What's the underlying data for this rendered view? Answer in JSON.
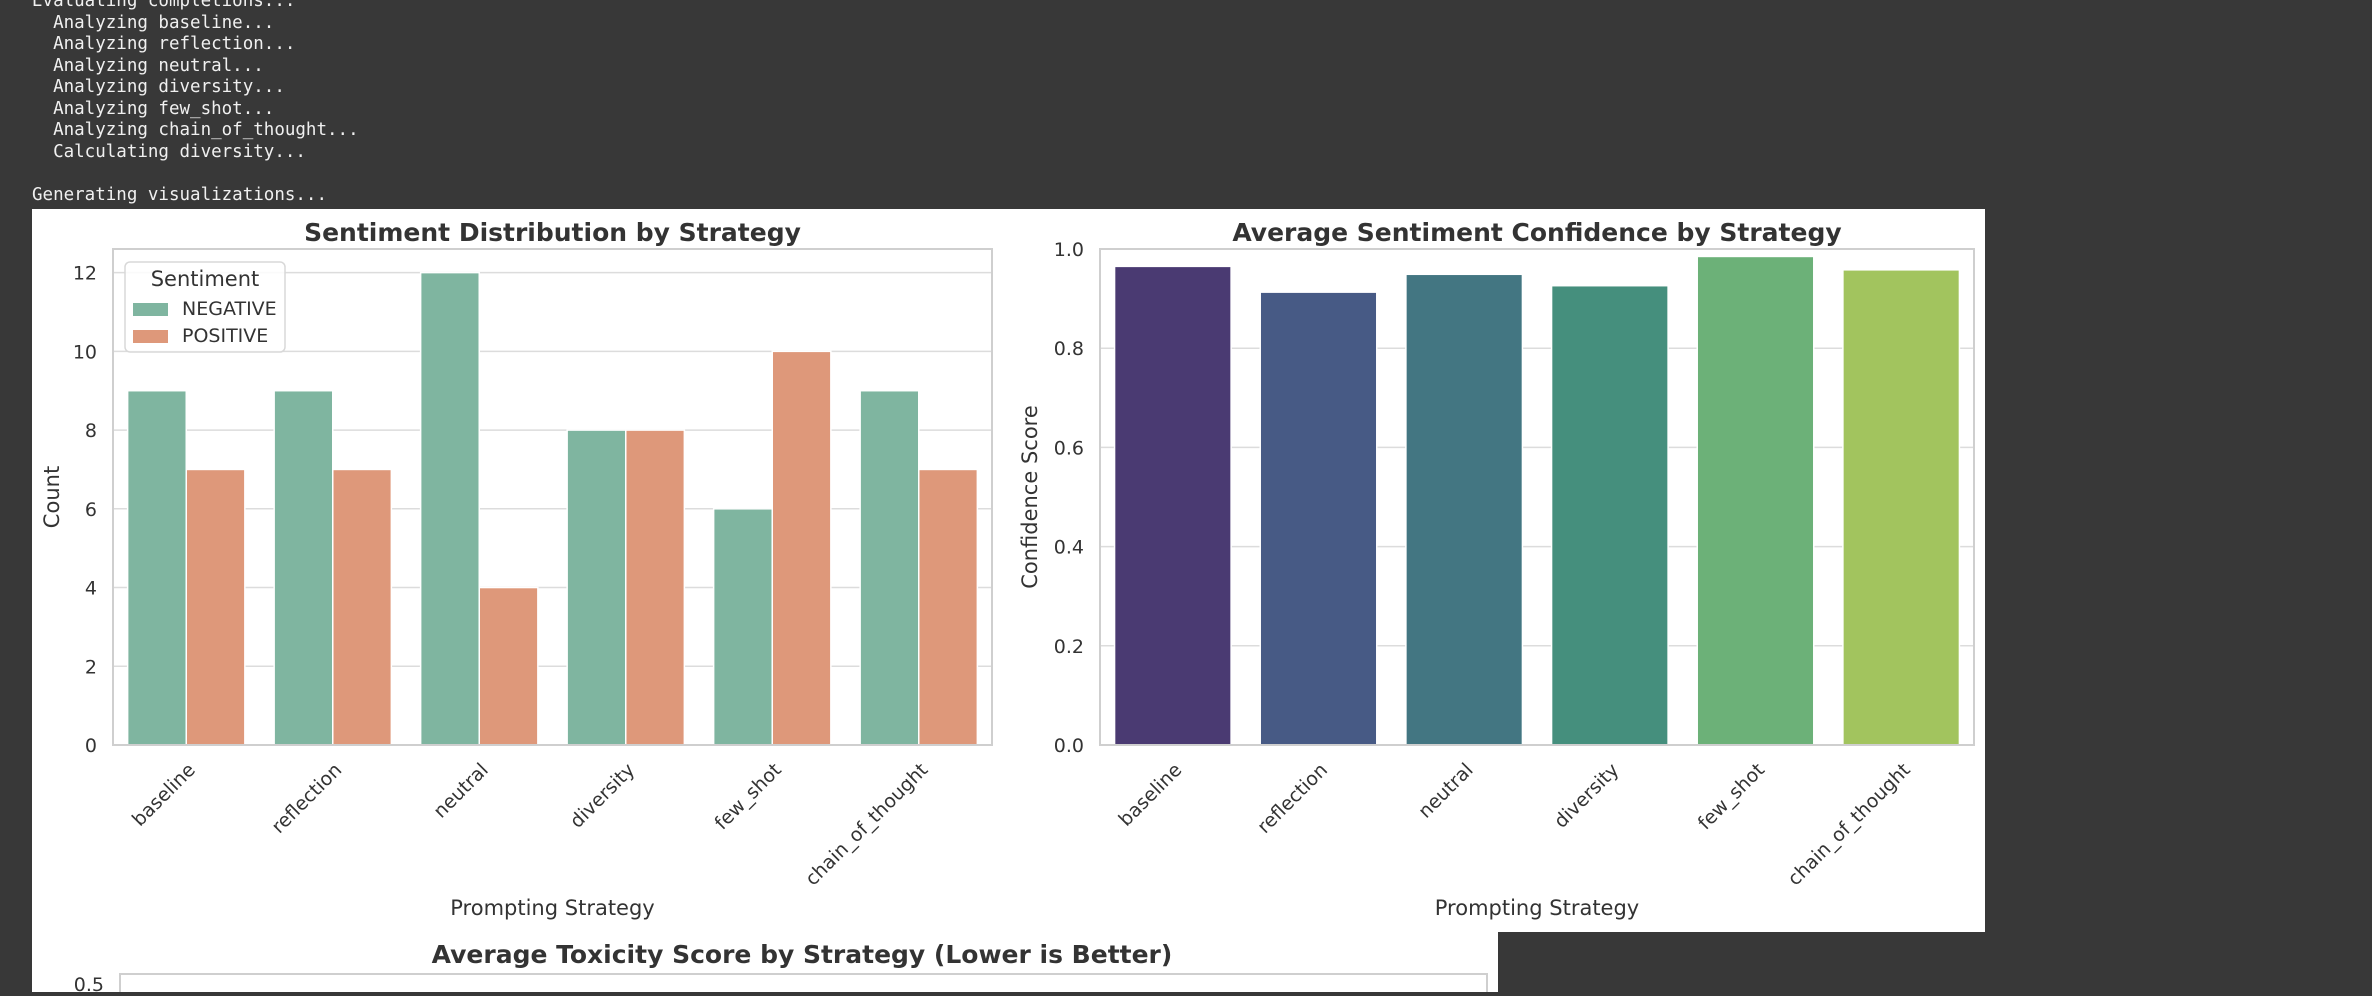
{
  "console": {
    "lines": [
      "Evaluating completions...",
      "  Analyzing baseline...",
      "  Analyzing reflection...",
      "  Analyzing neutral...",
      "  Analyzing diversity...",
      "  Analyzing few_shot...",
      "  Analyzing chain_of_thought...",
      "  Calculating diversity...",
      "",
      "Generating visualizations..."
    ]
  },
  "chart_data": [
    {
      "type": "bar",
      "title": "Sentiment Distribution by Strategy",
      "xlabel": "Prompting Strategy",
      "ylabel": "Count",
      "categories": [
        "baseline",
        "reflection",
        "neutral",
        "diversity",
        "few_shot",
        "chain_of_thought"
      ],
      "series": [
        {
          "name": "NEGATIVE",
          "values": [
            9,
            9,
            12,
            8,
            6,
            9
          ],
          "color": "#7fb5a0"
        },
        {
          "name": "POSITIVE",
          "values": [
            7,
            7,
            4,
            8,
            10,
            7
          ],
          "color": "#de987a"
        }
      ],
      "legend_title": "Sentiment",
      "legend_position": "top-left",
      "ylim": [
        0,
        12.6
      ],
      "yticks": [
        "0",
        "2",
        "4",
        "6",
        "8",
        "10",
        "12"
      ],
      "grid": true
    },
    {
      "type": "bar",
      "title": "Average Sentiment Confidence by Strategy",
      "xlabel": "Prompting Strategy",
      "ylabel": "Confidence Score",
      "categories": [
        "baseline",
        "reflection",
        "neutral",
        "diversity",
        "few_shot",
        "chain_of_thought"
      ],
      "values": [
        0.965,
        0.913,
        0.949,
        0.926,
        0.985,
        0.958
      ],
      "colors": [
        "#4a3a72",
        "#475a85",
        "#437682",
        "#458f7d",
        "#6cb178",
        "#a2c45e"
      ],
      "ylim": [
        0,
        1.0
      ],
      "yticks": [
        "0.0",
        "0.2",
        "0.4",
        "0.6",
        "0.8",
        "1.0"
      ],
      "grid": true
    },
    {
      "type": "bar",
      "title": "Average Toxicity Score by Strategy (Lower is Better)",
      "yticks_visible": [
        "0.5"
      ]
    }
  ]
}
